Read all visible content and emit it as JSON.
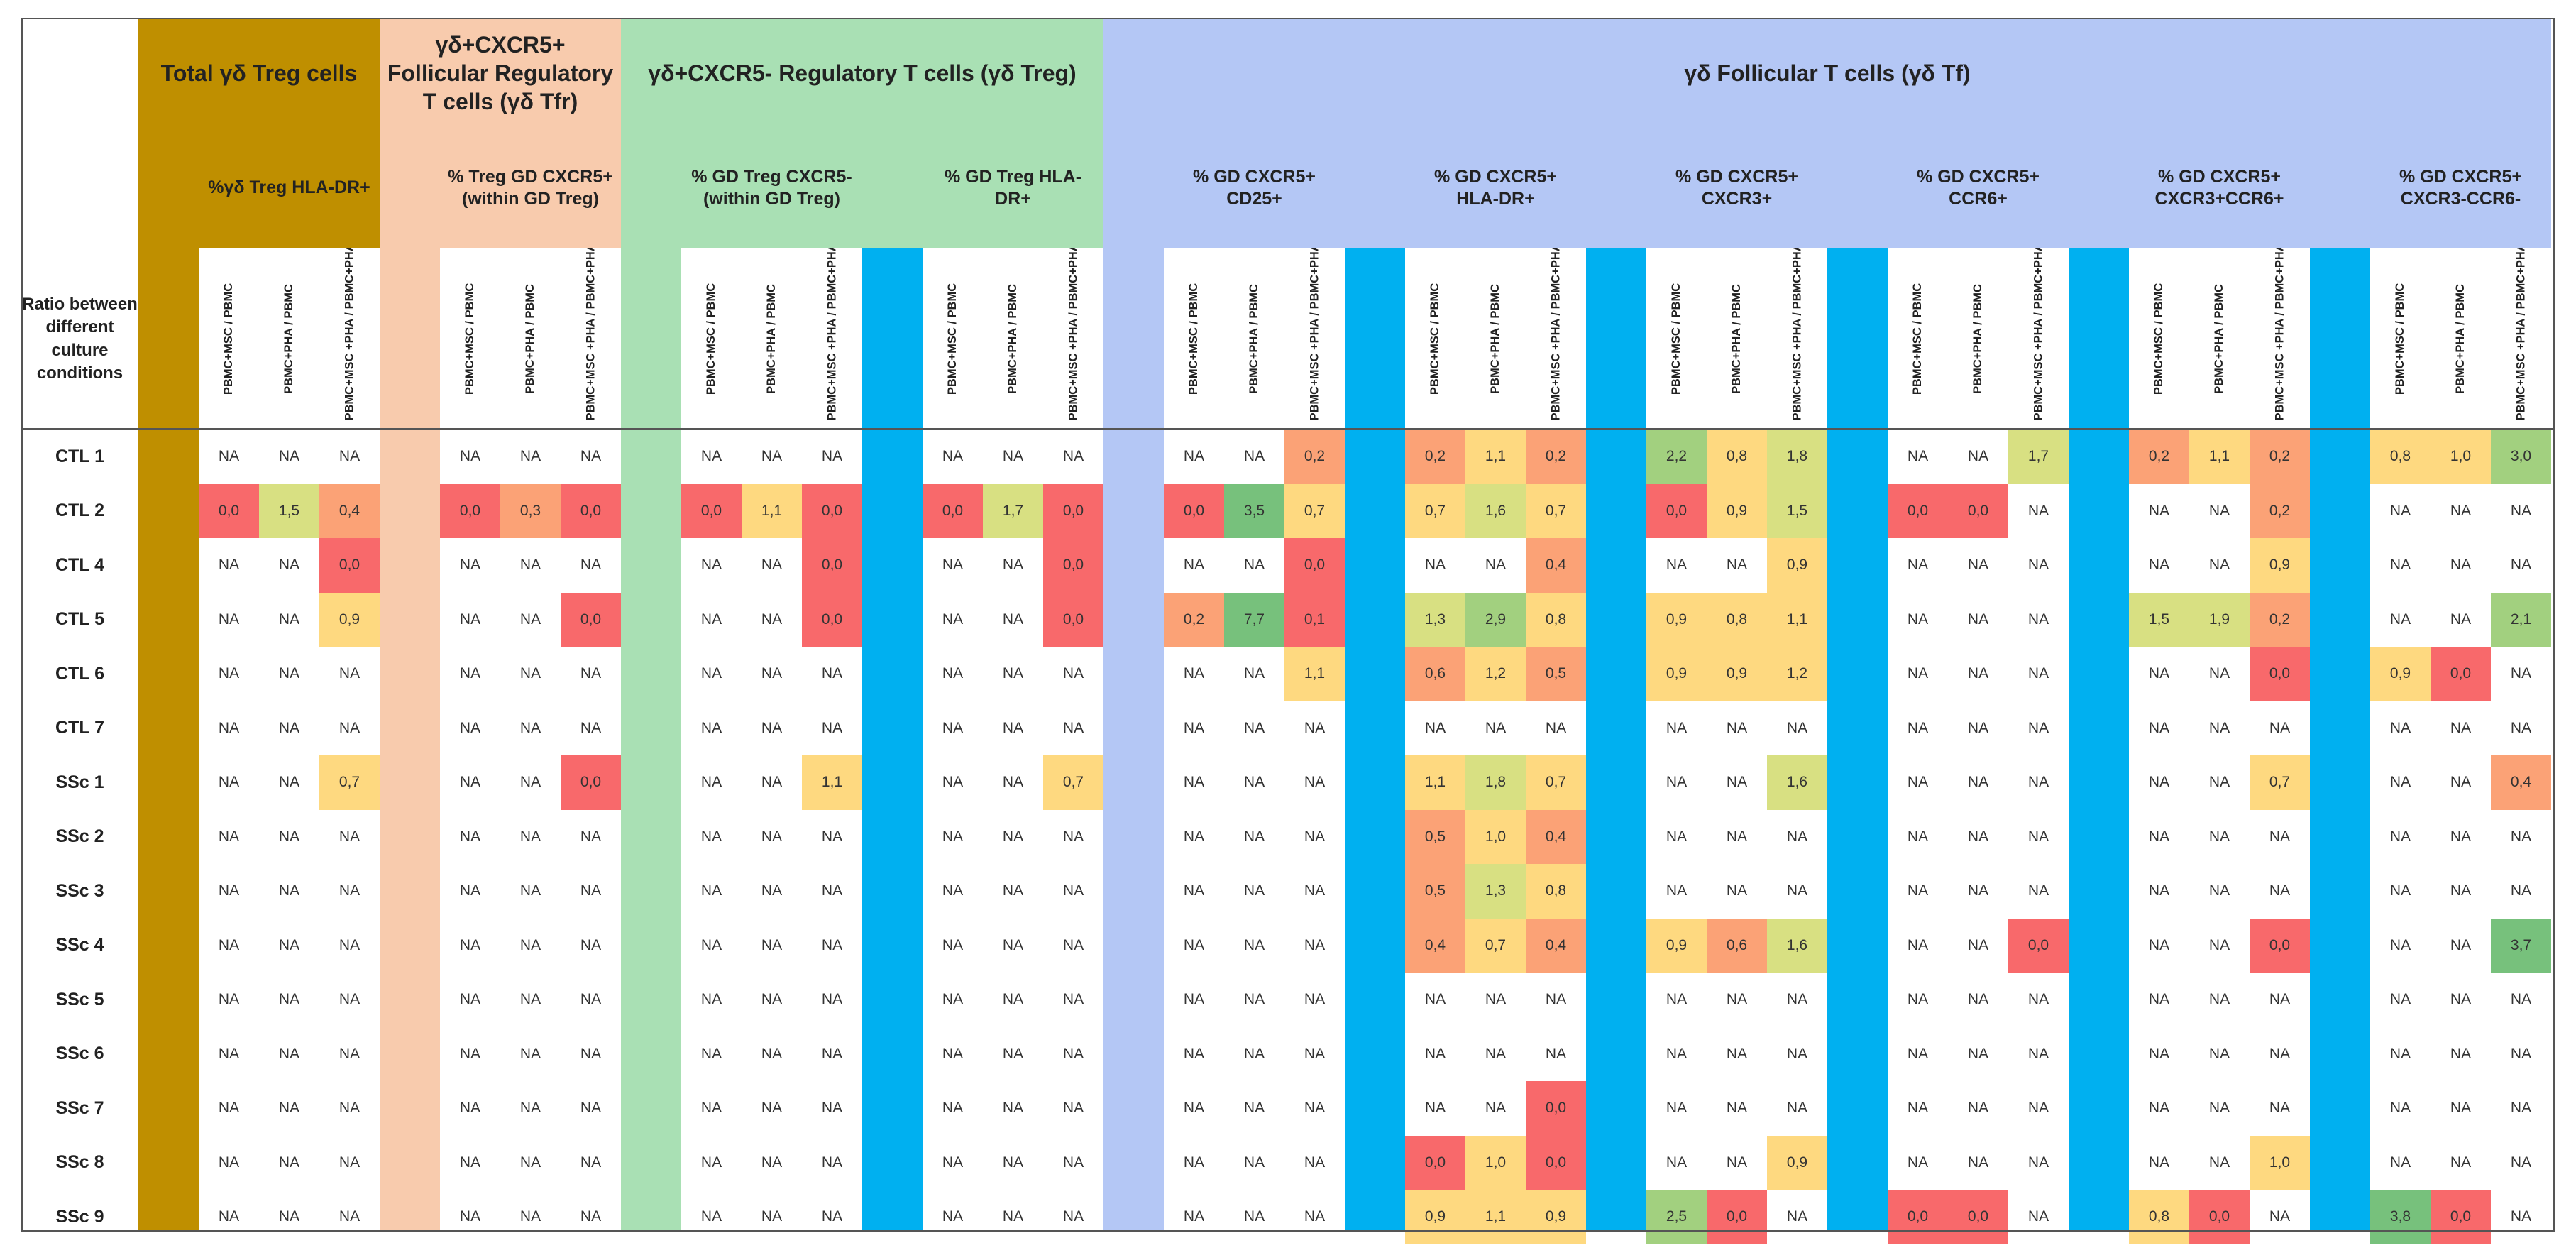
{
  "corner_label": "Ratio between different culture conditions",
  "colors": {
    "total": "#bf8f00",
    "tfr": "#f8cbad",
    "treg": "#a9e0b4",
    "tf": "#b4c7f5",
    "sep": "#00b0f0",
    "scale": [
      "#f8696b",
      "#fba276",
      "#fed980",
      "#d8e082",
      "#a2d07f",
      "#77c17c"
    ]
  },
  "column_labels": [
    "PBMC+MSC / PBMC",
    "PBMC+PHA / PBMC",
    "PBMC+MSC +PHA / PBMC+PHA"
  ],
  "groups": [
    {
      "key": "total",
      "title": "Total γδ Treg cells",
      "subs": [
        {
          "title": "%γδ Treg HLA-DR+"
        }
      ]
    },
    {
      "key": "tfr",
      "title": "γδ+CXCR5+ Follicular Regulatory T cells (γδ Tfr)",
      "subs": [
        {
          "title": "% Treg GD CXCR5+ (within GD Treg)"
        }
      ]
    },
    {
      "key": "treg",
      "title": "γδ+CXCR5- Regulatory T cells (γδ Treg)",
      "subs": [
        {
          "title": "% GD Treg CXCR5- (within GD Treg)"
        },
        {
          "title": "% GD Treg  HLA-DR+"
        }
      ]
    },
    {
      "key": "tf",
      "title": "γδ Follicular T cells (γδ Tf)",
      "subs": [
        {
          "title": "% GD CXCR5+ CD25+"
        },
        {
          "title": "% GD CXCR5+ HLA-DR+"
        },
        {
          "title": "% GD CXCR5+ CXCR3+"
        },
        {
          "title": "% GD CXCR5+ CCR6+"
        },
        {
          "title": "% GD CXCR5+ CXCR3+CCR6+"
        },
        {
          "title": "% GD CXCR5+ CXCR3-CCR6-"
        }
      ]
    }
  ],
  "rows": [
    {
      "label": "CTL 1",
      "values": [
        [
          "NA",
          "NA",
          "NA"
        ],
        [
          "NA",
          "NA",
          "NA"
        ],
        [
          "NA",
          "NA",
          "NA"
        ],
        [
          "NA",
          "NA",
          "NA"
        ],
        [
          "NA",
          "NA",
          "0,2"
        ],
        [
          "0,2",
          "1,1",
          "0,2"
        ],
        [
          "2,2",
          "0,8",
          "1,8"
        ],
        [
          "NA",
          "NA",
          "1,7"
        ],
        [
          "0,2",
          "1,1",
          "0,2"
        ],
        [
          "0,8",
          "1,0",
          "3,0"
        ]
      ]
    },
    {
      "label": "CTL 2",
      "values": [
        [
          "0,0",
          "1,5",
          "0,4"
        ],
        [
          "0,0",
          "0,3",
          "0,0"
        ],
        [
          "0,0",
          "1,1",
          "0,0"
        ],
        [
          "0,0",
          "1,7",
          "0,0"
        ],
        [
          "0,0",
          "3,5",
          "0,7"
        ],
        [
          "0,7",
          "1,6",
          "0,7"
        ],
        [
          "0,0",
          "0,9",
          "1,5"
        ],
        [
          "0,0",
          "0,0",
          "NA"
        ],
        [
          "NA",
          "NA",
          "0,2"
        ],
        [
          "NA",
          "NA",
          "NA"
        ]
      ]
    },
    {
      "label": "CTL 4",
      "values": [
        [
          "NA",
          "NA",
          "0,0"
        ],
        [
          "NA",
          "NA",
          "NA"
        ],
        [
          "NA",
          "NA",
          "0,0"
        ],
        [
          "NA",
          "NA",
          "0,0"
        ],
        [
          "NA",
          "NA",
          "0,0"
        ],
        [
          "NA",
          "NA",
          "0,4"
        ],
        [
          "NA",
          "NA",
          "0,9"
        ],
        [
          "NA",
          "NA",
          "NA"
        ],
        [
          "NA",
          "NA",
          "0,9"
        ],
        [
          "NA",
          "NA",
          "NA"
        ]
      ]
    },
    {
      "label": "CTL 5",
      "values": [
        [
          "NA",
          "NA",
          "0,9"
        ],
        [
          "NA",
          "NA",
          "0,0"
        ],
        [
          "NA",
          "NA",
          "0,0"
        ],
        [
          "NA",
          "NA",
          "0,0"
        ],
        [
          "0,2",
          "7,7",
          "0,1"
        ],
        [
          "1,3",
          "2,9",
          "0,8"
        ],
        [
          "0,9",
          "0,8",
          "1,1"
        ],
        [
          "NA",
          "NA",
          "NA"
        ],
        [
          "1,5",
          "1,9",
          "0,2"
        ],
        [
          "NA",
          "NA",
          "2,1"
        ]
      ]
    },
    {
      "label": "CTL 6",
      "values": [
        [
          "NA",
          "NA",
          "NA"
        ],
        [
          "NA",
          "NA",
          "NA"
        ],
        [
          "NA",
          "NA",
          "NA"
        ],
        [
          "NA",
          "NA",
          "NA"
        ],
        [
          "NA",
          "NA",
          "1,1"
        ],
        [
          "0,6",
          "1,2",
          "0,5"
        ],
        [
          "0,9",
          "0,9",
          "1,2"
        ],
        [
          "NA",
          "NA",
          "NA"
        ],
        [
          "NA",
          "NA",
          "0,0"
        ],
        [
          "0,9",
          "0,0",
          "NA"
        ]
      ]
    },
    {
      "label": "CTL 7",
      "values": [
        [
          "NA",
          "NA",
          "NA"
        ],
        [
          "NA",
          "NA",
          "NA"
        ],
        [
          "NA",
          "NA",
          "NA"
        ],
        [
          "NA",
          "NA",
          "NA"
        ],
        [
          "NA",
          "NA",
          "NA"
        ],
        [
          "NA",
          "NA",
          "NA"
        ],
        [
          "NA",
          "NA",
          "NA"
        ],
        [
          "NA",
          "NA",
          "NA"
        ],
        [
          "NA",
          "NA",
          "NA"
        ],
        [
          "NA",
          "NA",
          "NA"
        ]
      ]
    },
    {
      "label": "SSc 1",
      "values": [
        [
          "NA",
          "NA",
          "0,7"
        ],
        [
          "NA",
          "NA",
          "0,0"
        ],
        [
          "NA",
          "NA",
          "1,1"
        ],
        [
          "NA",
          "NA",
          "0,7"
        ],
        [
          "NA",
          "NA",
          "NA"
        ],
        [
          "1,1",
          "1,8",
          "0,7"
        ],
        [
          "NA",
          "NA",
          "1,6"
        ],
        [
          "NA",
          "NA",
          "NA"
        ],
        [
          "NA",
          "NA",
          "0,7"
        ],
        [
          "NA",
          "NA",
          "0,4"
        ]
      ]
    },
    {
      "label": "SSc 2",
      "values": [
        [
          "NA",
          "NA",
          "NA"
        ],
        [
          "NA",
          "NA",
          "NA"
        ],
        [
          "NA",
          "NA",
          "NA"
        ],
        [
          "NA",
          "NA",
          "NA"
        ],
        [
          "NA",
          "NA",
          "NA"
        ],
        [
          "0,5",
          "1,0",
          "0,4"
        ],
        [
          "NA",
          "NA",
          "NA"
        ],
        [
          "NA",
          "NA",
          "NA"
        ],
        [
          "NA",
          "NA",
          "NA"
        ],
        [
          "NA",
          "NA",
          "NA"
        ]
      ]
    },
    {
      "label": "SSc 3",
      "values": [
        [
          "NA",
          "NA",
          "NA"
        ],
        [
          "NA",
          "NA",
          "NA"
        ],
        [
          "NA",
          "NA",
          "NA"
        ],
        [
          "NA",
          "NA",
          "NA"
        ],
        [
          "NA",
          "NA",
          "NA"
        ],
        [
          "0,5",
          "1,3",
          "0,8"
        ],
        [
          "NA",
          "NA",
          "NA"
        ],
        [
          "NA",
          "NA",
          "NA"
        ],
        [
          "NA",
          "NA",
          "NA"
        ],
        [
          "NA",
          "NA",
          "NA"
        ]
      ]
    },
    {
      "label": "SSc 4",
      "values": [
        [
          "NA",
          "NA",
          "NA"
        ],
        [
          "NA",
          "NA",
          "NA"
        ],
        [
          "NA",
          "NA",
          "NA"
        ],
        [
          "NA",
          "NA",
          "NA"
        ],
        [
          "NA",
          "NA",
          "NA"
        ],
        [
          "0,4",
          "0,7",
          "0,4"
        ],
        [
          "0,9",
          "0,6",
          "1,6"
        ],
        [
          "NA",
          "NA",
          "0,0"
        ],
        [
          "NA",
          "NA",
          "0,0"
        ],
        [
          "NA",
          "NA",
          "3,7"
        ]
      ]
    },
    {
      "label": "SSc 5",
      "values": [
        [
          "NA",
          "NA",
          "NA"
        ],
        [
          "NA",
          "NA",
          "NA"
        ],
        [
          "NA",
          "NA",
          "NA"
        ],
        [
          "NA",
          "NA",
          "NA"
        ],
        [
          "NA",
          "NA",
          "NA"
        ],
        [
          "NA",
          "NA",
          "NA"
        ],
        [
          "NA",
          "NA",
          "NA"
        ],
        [
          "NA",
          "NA",
          "NA"
        ],
        [
          "NA",
          "NA",
          "NA"
        ],
        [
          "NA",
          "NA",
          "NA"
        ]
      ]
    },
    {
      "label": "SSc 6",
      "values": [
        [
          "NA",
          "NA",
          "NA"
        ],
        [
          "NA",
          "NA",
          "NA"
        ],
        [
          "NA",
          "NA",
          "NA"
        ],
        [
          "NA",
          "NA",
          "NA"
        ],
        [
          "NA",
          "NA",
          "NA"
        ],
        [
          "NA",
          "NA",
          "NA"
        ],
        [
          "NA",
          "NA",
          "NA"
        ],
        [
          "NA",
          "NA",
          "NA"
        ],
        [
          "NA",
          "NA",
          "NA"
        ],
        [
          "NA",
          "NA",
          "NA"
        ]
      ]
    },
    {
      "label": "SSc 7",
      "values": [
        [
          "NA",
          "NA",
          "NA"
        ],
        [
          "NA",
          "NA",
          "NA"
        ],
        [
          "NA",
          "NA",
          "NA"
        ],
        [
          "NA",
          "NA",
          "NA"
        ],
        [
          "NA",
          "NA",
          "NA"
        ],
        [
          "NA",
          "NA",
          "0,0"
        ],
        [
          "NA",
          "NA",
          "NA"
        ],
        [
          "NA",
          "NA",
          "NA"
        ],
        [
          "NA",
          "NA",
          "NA"
        ],
        [
          "NA",
          "NA",
          "NA"
        ]
      ]
    },
    {
      "label": "SSc 8",
      "values": [
        [
          "NA",
          "NA",
          "NA"
        ],
        [
          "NA",
          "NA",
          "NA"
        ],
        [
          "NA",
          "NA",
          "NA"
        ],
        [
          "NA",
          "NA",
          "NA"
        ],
        [
          "NA",
          "NA",
          "NA"
        ],
        [
          "0,0",
          "1,0",
          "0,0"
        ],
        [
          "NA",
          "NA",
          "0,9"
        ],
        [
          "NA",
          "NA",
          "NA"
        ],
        [
          "NA",
          "NA",
          "1,0"
        ],
        [
          "NA",
          "NA",
          "NA"
        ]
      ]
    },
    {
      "label": "SSc 9",
      "values": [
        [
          "NA",
          "NA",
          "NA"
        ],
        [
          "NA",
          "NA",
          "NA"
        ],
        [
          "NA",
          "NA",
          "NA"
        ],
        [
          "NA",
          "NA",
          "NA"
        ],
        [
          "NA",
          "NA",
          "NA"
        ],
        [
          "0,9",
          "1,1",
          "0,9"
        ],
        [
          "2,5",
          "0,0",
          "NA"
        ],
        [
          "0,0",
          "0,0",
          "NA"
        ],
        [
          "0,8",
          "0,0",
          "NA"
        ],
        [
          "3,8",
          "0,0",
          "NA"
        ]
      ]
    }
  ]
}
